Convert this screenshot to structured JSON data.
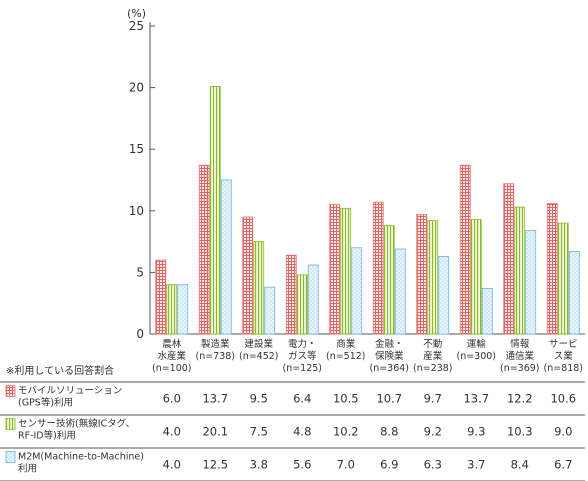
{
  "chart_data": {
    "type": "bar",
    "unit": "(%)",
    "ylim": [
      0,
      25
    ],
    "yticks": [
      0,
      5,
      10,
      15,
      20,
      25
    ],
    "grid": false,
    "categories": [
      [
        "農林",
        "水産業",
        "(n=100)"
      ],
      [
        "製造業",
        "(n=738)"
      ],
      [
        "建設業",
        "(n=452)"
      ],
      [
        "電力・",
        "ガス等",
        "(n=125)"
      ],
      [
        "商業",
        "(n=512)"
      ],
      [
        "金融・",
        "保険業",
        "(n=364)"
      ],
      [
        "不動",
        "産業",
        "(n=238)"
      ],
      [
        "運輸",
        "(n=300)"
      ],
      [
        "情報",
        "通信業",
        "(n=369)"
      ],
      [
        "サービ",
        "ス業",
        "(n=818)"
      ]
    ],
    "table_note": "※利用している回答割合",
    "series": [
      {
        "name": [
          "モバイルソリューション",
          "(GPS等)利用"
        ],
        "color": "#e57373",
        "pattern": "grid",
        "values": [
          6.0,
          13.7,
          9.5,
          6.4,
          10.5,
          10.7,
          9.7,
          13.7,
          12.2,
          10.6
        ],
        "display": [
          "6.0",
          "13.7",
          "9.5",
          "6.4",
          "10.5",
          "10.7",
          "9.7",
          "13.7",
          "12.2",
          "10.6"
        ]
      },
      {
        "name": [
          "センサー技術(無線ICタグ、",
          "RF-ID等)利用"
        ],
        "color": "#8ab82c",
        "pattern": "stripes",
        "values": [
          4.0,
          20.1,
          7.5,
          4.8,
          10.2,
          8.8,
          9.2,
          9.3,
          10.3,
          9.0
        ],
        "display": [
          "4.0",
          "20.1",
          "7.5",
          "4.8",
          "10.2",
          "8.8",
          "9.2",
          "9.3",
          "10.3",
          "9.0"
        ]
      },
      {
        "name": [
          "M2M(Machine-to-Machine)",
          "利用"
        ],
        "color": "#6fb3e0",
        "pattern": "dots",
        "values": [
          4.0,
          12.5,
          3.8,
          5.6,
          7.0,
          6.9,
          6.3,
          3.7,
          8.4,
          6.7
        ],
        "display": [
          "4.0",
          "12.5",
          "3.8",
          "5.6",
          "7.0",
          "6.9",
          "6.3",
          "3.7",
          "8.4",
          "6.7"
        ]
      }
    ]
  }
}
